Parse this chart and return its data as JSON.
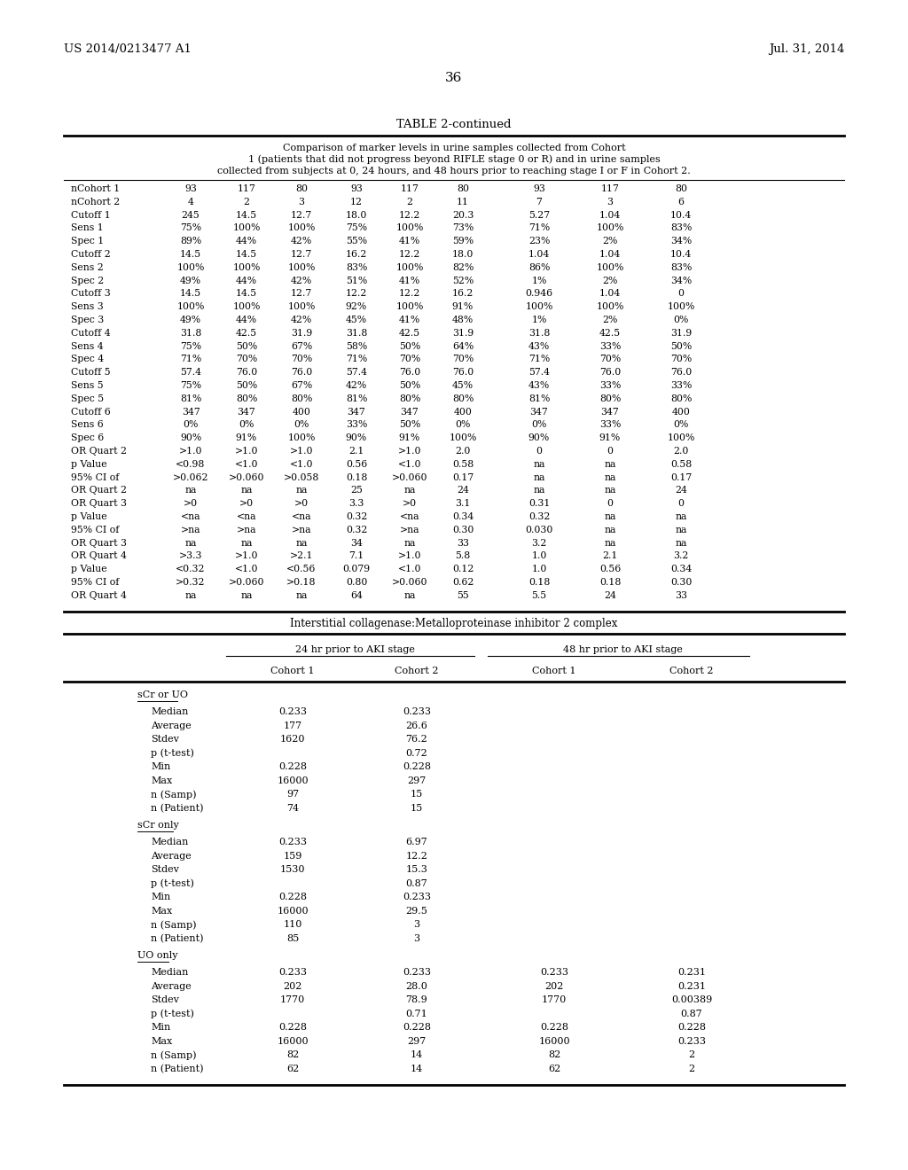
{
  "page_left": "US 2014/0213477 A1",
  "page_right": "Jul. 31, 2014",
  "page_number": "36",
  "table_title": "TABLE 2-continued",
  "table_caption_lines": [
    "Comparison of marker levels in urine samples collected from Cohort",
    "1 (patients that did not progress beyond RIFLE stage 0 or R) and in urine samples",
    "collected from subjects at 0, 24 hours, and 48 hours prior to reaching stage I or F in Cohort 2."
  ],
  "top_table_rows": [
    [
      "nCohort 1",
      "93",
      "117",
      "80",
      "93",
      "117",
      "80",
      "93",
      "117",
      "80"
    ],
    [
      "nCohort 2",
      "4",
      "2",
      "3",
      "12",
      "2",
      "11",
      "7",
      "3",
      "6"
    ],
    [
      "Cutoff 1",
      "245",
      "14.5",
      "12.7",
      "18.0",
      "12.2",
      "20.3",
      "5.27",
      "1.04",
      "10.4"
    ],
    [
      "Sens 1",
      "75%",
      "100%",
      "100%",
      "75%",
      "100%",
      "73%",
      "71%",
      "100%",
      "83%"
    ],
    [
      "Spec 1",
      "89%",
      "44%",
      "42%",
      "55%",
      "41%",
      "59%",
      "23%",
      "2%",
      "34%"
    ],
    [
      "Cutoff 2",
      "14.5",
      "14.5",
      "12.7",
      "16.2",
      "12.2",
      "18.0",
      "1.04",
      "1.04",
      "10.4"
    ],
    [
      "Sens 2",
      "100%",
      "100%",
      "100%",
      "83%",
      "100%",
      "82%",
      "86%",
      "100%",
      "83%"
    ],
    [
      "Spec 2",
      "49%",
      "44%",
      "42%",
      "51%",
      "41%",
      "52%",
      "1%",
      "2%",
      "34%"
    ],
    [
      "Cutoff 3",
      "14.5",
      "14.5",
      "12.7",
      "12.2",
      "12.2",
      "16.2",
      "0.946",
      "1.04",
      "0"
    ],
    [
      "Sens 3",
      "100%",
      "100%",
      "100%",
      "92%",
      "100%",
      "91%",
      "100%",
      "100%",
      "100%"
    ],
    [
      "Spec 3",
      "49%",
      "44%",
      "42%",
      "45%",
      "41%",
      "48%",
      "1%",
      "2%",
      "0%"
    ],
    [
      "Cutoff 4",
      "31.8",
      "42.5",
      "31.9",
      "31.8",
      "42.5",
      "31.9",
      "31.8",
      "42.5",
      "31.9"
    ],
    [
      "Sens 4",
      "75%",
      "50%",
      "67%",
      "58%",
      "50%",
      "64%",
      "43%",
      "33%",
      "50%"
    ],
    [
      "Spec 4",
      "71%",
      "70%",
      "70%",
      "71%",
      "70%",
      "70%",
      "71%",
      "70%",
      "70%"
    ],
    [
      "Cutoff 5",
      "57.4",
      "76.0",
      "76.0",
      "57.4",
      "76.0",
      "76.0",
      "57.4",
      "76.0",
      "76.0"
    ],
    [
      "Sens 5",
      "75%",
      "50%",
      "67%",
      "42%",
      "50%",
      "45%",
      "43%",
      "33%",
      "33%"
    ],
    [
      "Spec 5",
      "81%",
      "80%",
      "80%",
      "81%",
      "80%",
      "80%",
      "81%",
      "80%",
      "80%"
    ],
    [
      "Cutoff 6",
      "347",
      "347",
      "400",
      "347",
      "347",
      "400",
      "347",
      "347",
      "400"
    ],
    [
      "Sens 6",
      "0%",
      "0%",
      "0%",
      "33%",
      "50%",
      "0%",
      "0%",
      "33%",
      "0%"
    ],
    [
      "Spec 6",
      "90%",
      "91%",
      "100%",
      "90%",
      "91%",
      "100%",
      "90%",
      "91%",
      "100%"
    ],
    [
      "OR Quart 2",
      ">1.0",
      ">1.0",
      ">1.0",
      "2.1",
      ">1.0",
      "2.0",
      "0",
      "0",
      "2.0"
    ],
    [
      "p Value",
      "<0.98",
      "<1.0",
      "<1.0",
      "0.56",
      "<1.0",
      "0.58",
      "na",
      "na",
      "0.58"
    ],
    [
      "95% CI of",
      ">0.062",
      ">0.060",
      ">0.058",
      "0.18",
      ">0.060",
      "0.17",
      "na",
      "na",
      "0.17"
    ],
    [
      "OR Quart 2",
      "na",
      "na",
      "na",
      "25",
      "na",
      "24",
      "na",
      "na",
      "24"
    ],
    [
      "OR Quart 3",
      ">0",
      ">0",
      ">0",
      "3.3",
      ">0",
      "3.1",
      "0.31",
      "0",
      "0"
    ],
    [
      "p Value",
      "<na",
      "<na",
      "<na",
      "0.32",
      "<na",
      "0.34",
      "0.32",
      "na",
      "na"
    ],
    [
      "95% CI of",
      ">na",
      ">na",
      ">na",
      "0.32",
      ">na",
      "0.30",
      "0.030",
      "na",
      "na"
    ],
    [
      "OR Quart 3",
      "na",
      "na",
      "na",
      "34",
      "na",
      "33",
      "3.2",
      "na",
      "na"
    ],
    [
      "OR Quart 4",
      ">3.3",
      ">1.0",
      ">2.1",
      "7.1",
      ">1.0",
      "5.8",
      "1.0",
      "2.1",
      "3.2"
    ],
    [
      "p Value",
      "<0.32",
      "<1.0",
      "<0.56",
      "0.079",
      "<1.0",
      "0.12",
      "1.0",
      "0.56",
      "0.34"
    ],
    [
      "95% CI of",
      ">0.32",
      ">0.060",
      ">0.18",
      "0.80",
      ">0.060",
      "0.62",
      "0.18",
      "0.18",
      "0.30"
    ],
    [
      "OR Quart 4",
      "na",
      "na",
      "na",
      "64",
      "na",
      "55",
      "5.5",
      "24",
      "33"
    ]
  ],
  "bottom_table_title": "Interstitial collagenase:Metalloproteinase inhibitor 2 complex",
  "bottom_sections": [
    {
      "section_label": "sCr or UO",
      "rows": [
        [
          "Median",
          "0.233",
          "0.233",
          "",
          ""
        ],
        [
          "Average",
          "177",
          "26.6",
          "",
          ""
        ],
        [
          "Stdev",
          "1620",
          "76.2",
          "",
          ""
        ],
        [
          "p (t-test)",
          "",
          "0.72",
          "",
          ""
        ],
        [
          "Min",
          "0.228",
          "0.228",
          "",
          ""
        ],
        [
          "Max",
          "16000",
          "297",
          "",
          ""
        ],
        [
          "n (Samp)",
          "97",
          "15",
          "",
          ""
        ],
        [
          "n (Patient)",
          "74",
          "15",
          "",
          ""
        ]
      ]
    },
    {
      "section_label": "sCr only",
      "rows": [
        [
          "Median",
          "0.233",
          "6.97",
          "",
          ""
        ],
        [
          "Average",
          "159",
          "12.2",
          "",
          ""
        ],
        [
          "Stdev",
          "1530",
          "15.3",
          "",
          ""
        ],
        [
          "p (t-test)",
          "",
          "0.87",
          "",
          ""
        ],
        [
          "Min",
          "0.228",
          "0.233",
          "",
          ""
        ],
        [
          "Max",
          "16000",
          "29.5",
          "",
          ""
        ],
        [
          "n (Samp)",
          "110",
          "3",
          "",
          ""
        ],
        [
          "n (Patient)",
          "85",
          "3",
          "",
          ""
        ]
      ]
    },
    {
      "section_label": "UO only",
      "rows": [
        [
          "Median",
          "0.233",
          "0.233",
          "0.233",
          "0.231"
        ],
        [
          "Average",
          "202",
          "28.0",
          "202",
          "0.231"
        ],
        [
          "Stdev",
          "1770",
          "78.9",
          "1770",
          "0.00389"
        ],
        [
          "p (t-test)",
          "",
          "0.71",
          "",
          "0.87"
        ],
        [
          "Min",
          "0.228",
          "0.228",
          "0.228",
          "0.228"
        ],
        [
          "Max",
          "16000",
          "297",
          "16000",
          "0.233"
        ],
        [
          "n (Samp)",
          "82",
          "14",
          "82",
          "2"
        ],
        [
          "n (Patient)",
          "62",
          "14",
          "62",
          "2"
        ]
      ]
    }
  ]
}
